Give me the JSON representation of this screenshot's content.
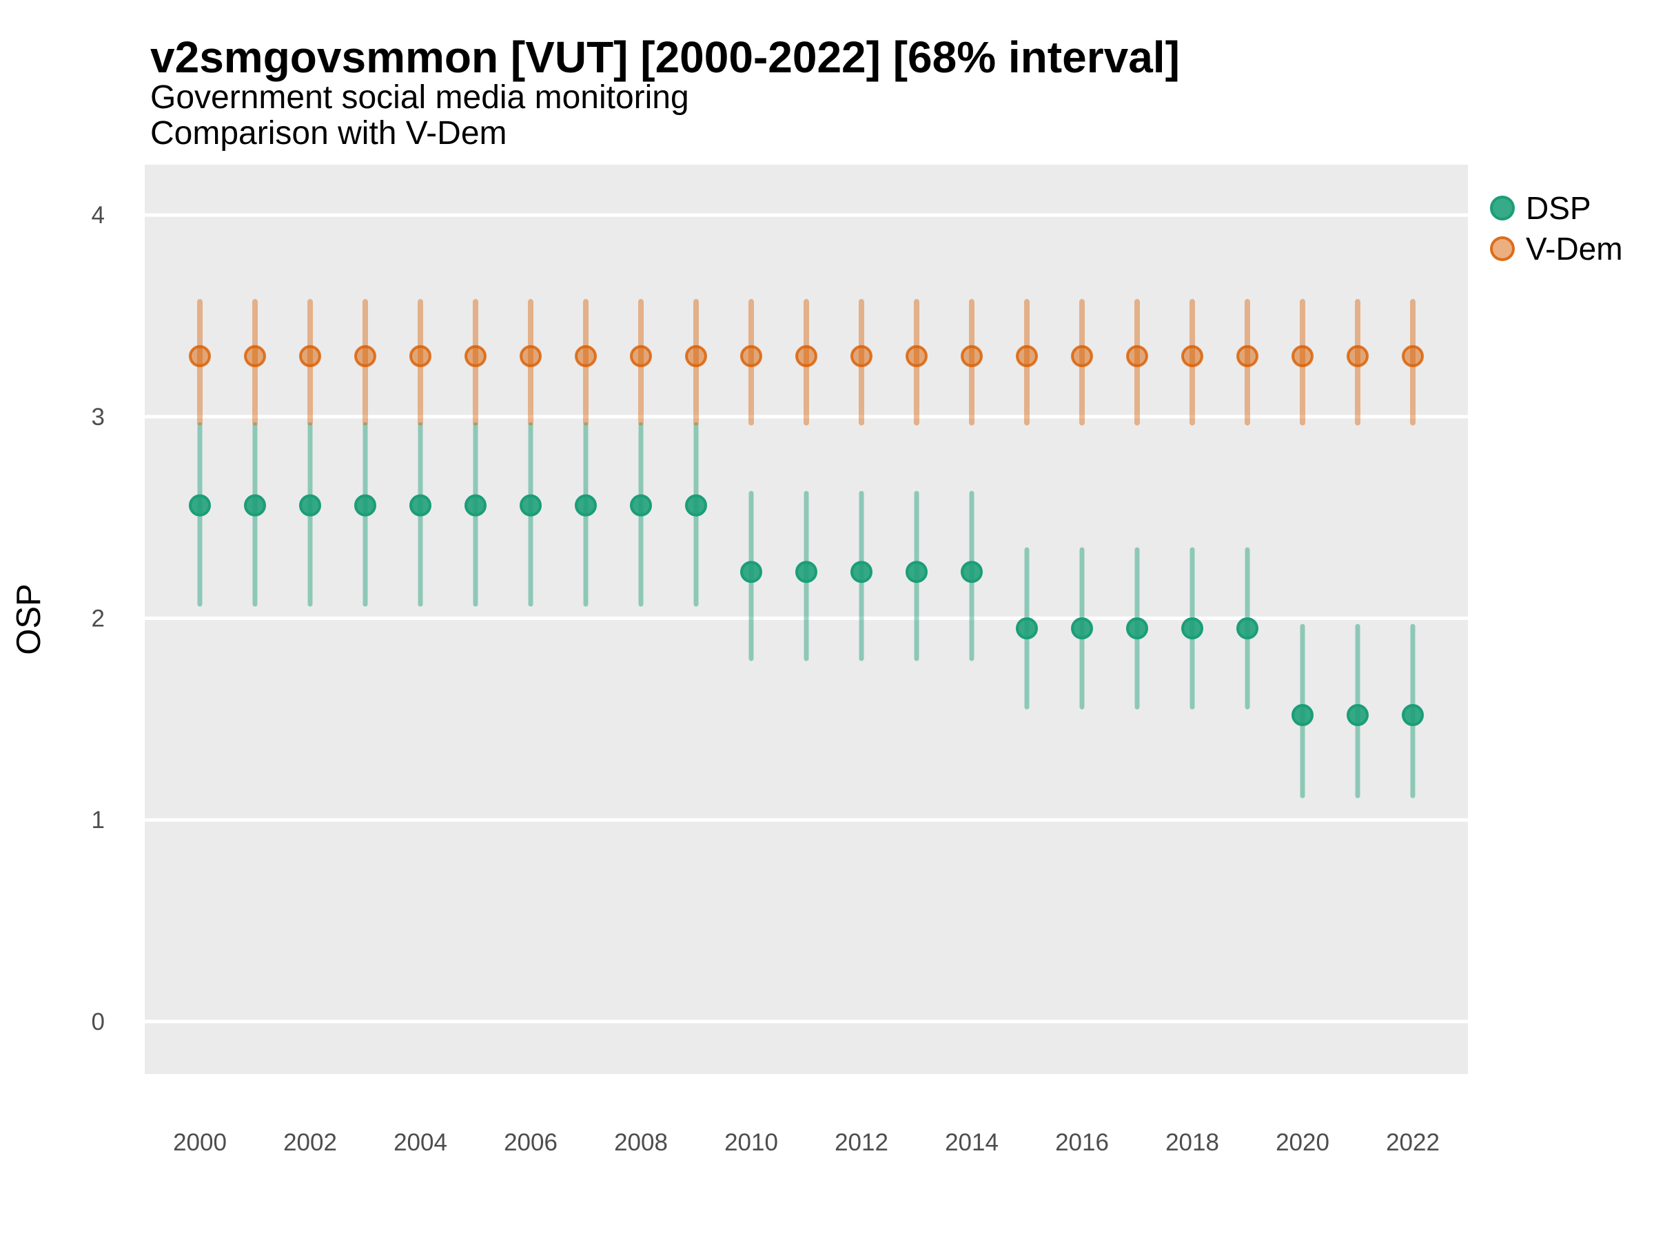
{
  "header": {
    "title": "v2smgovsmmon [VUT] [2000-2022] [68% interval]",
    "subtitle": "Government social media monitoring",
    "caption": "Comparison with V-Dem"
  },
  "style": {
    "panel_bg": "#EBEBEB",
    "grid_color": "#FFFFFF",
    "axis_text_color": "#4D4D4D",
    "text_color": "#000000",
    "series_styles": {
      "DSP": {
        "line": "rgba(27,158,119,0.45)",
        "fill": "rgba(27,158,119,0.88)",
        "ring": "#1B9E77"
      },
      "V-Dem": {
        "line": "rgba(217,95,2,0.42)",
        "fill": "rgba(217,95,2,0.5)",
        "ring": "rgba(217,95,2,0.82)"
      }
    }
  },
  "chart_data": {
    "type": "pointrange",
    "title": "v2smgovsmmon [VUT] [2000-2022] [68% interval]",
    "subtitle": "Government social media monitoring",
    "annotation": "Comparison with V-Dem",
    "interval": "68%",
    "country": "VUT",
    "xlabel": "",
    "ylabel": "OSP",
    "xlim": [
      1999,
      2023
    ],
    "ylim": [
      -0.26,
      4.25
    ],
    "x_ticks": [
      2000,
      2002,
      2004,
      2006,
      2008,
      2010,
      2012,
      2014,
      2016,
      2018,
      2020,
      2022
    ],
    "y_ticks": [
      0,
      1,
      2,
      3,
      4
    ],
    "grid": "horizontal-major-only",
    "legend_position": "right-top",
    "point_format": [
      "year",
      "est",
      "lo",
      "hi"
    ],
    "series": [
      {
        "name": "DSP",
        "color": "#1B9E77",
        "points": [
          [
            2000,
            2.56,
            2.07,
            2.96
          ],
          [
            2001,
            2.56,
            2.07,
            2.96
          ],
          [
            2002,
            2.56,
            2.07,
            2.96
          ],
          [
            2003,
            2.56,
            2.07,
            2.96
          ],
          [
            2004,
            2.56,
            2.07,
            2.96
          ],
          [
            2005,
            2.56,
            2.07,
            2.96
          ],
          [
            2006,
            2.56,
            2.07,
            2.96
          ],
          [
            2007,
            2.56,
            2.07,
            2.96
          ],
          [
            2008,
            2.56,
            2.07,
            2.96
          ],
          [
            2009,
            2.56,
            2.07,
            2.96
          ],
          [
            2010,
            2.23,
            1.8,
            2.62
          ],
          [
            2011,
            2.23,
            1.8,
            2.62
          ],
          [
            2012,
            2.23,
            1.8,
            2.62
          ],
          [
            2013,
            2.23,
            1.8,
            2.62
          ],
          [
            2014,
            2.23,
            1.8,
            2.62
          ],
          [
            2015,
            1.95,
            1.56,
            2.34
          ],
          [
            2016,
            1.95,
            1.56,
            2.34
          ],
          [
            2017,
            1.95,
            1.56,
            2.34
          ],
          [
            2018,
            1.95,
            1.56,
            2.34
          ],
          [
            2019,
            1.95,
            1.56,
            2.34
          ],
          [
            2020,
            1.52,
            1.12,
            1.96
          ],
          [
            2021,
            1.52,
            1.12,
            1.96
          ],
          [
            2022,
            1.52,
            1.12,
            1.96
          ]
        ]
      },
      {
        "name": "V-Dem",
        "color": "#D95F02",
        "points": [
          [
            2000,
            3.3,
            2.97,
            3.57
          ],
          [
            2001,
            3.3,
            2.97,
            3.57
          ],
          [
            2002,
            3.3,
            2.97,
            3.57
          ],
          [
            2003,
            3.3,
            2.97,
            3.57
          ],
          [
            2004,
            3.3,
            2.97,
            3.57
          ],
          [
            2005,
            3.3,
            2.97,
            3.57
          ],
          [
            2006,
            3.3,
            2.97,
            3.57
          ],
          [
            2007,
            3.3,
            2.97,
            3.57
          ],
          [
            2008,
            3.3,
            2.97,
            3.57
          ],
          [
            2009,
            3.3,
            2.97,
            3.57
          ],
          [
            2010,
            3.3,
            2.97,
            3.57
          ],
          [
            2011,
            3.3,
            2.97,
            3.57
          ],
          [
            2012,
            3.3,
            2.97,
            3.57
          ],
          [
            2013,
            3.3,
            2.97,
            3.57
          ],
          [
            2014,
            3.3,
            2.97,
            3.57
          ],
          [
            2015,
            3.3,
            2.97,
            3.57
          ],
          [
            2016,
            3.3,
            2.97,
            3.57
          ],
          [
            2017,
            3.3,
            2.97,
            3.57
          ],
          [
            2018,
            3.3,
            2.97,
            3.57
          ],
          [
            2019,
            3.3,
            2.97,
            3.57
          ],
          [
            2020,
            3.3,
            2.97,
            3.57
          ],
          [
            2021,
            3.3,
            2.97,
            3.57
          ],
          [
            2022,
            3.3,
            2.97,
            3.57
          ]
        ]
      }
    ]
  }
}
